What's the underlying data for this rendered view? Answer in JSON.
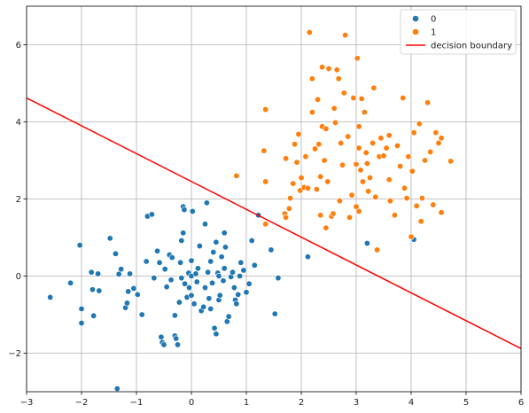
{
  "chart_data": {
    "type": "scatter",
    "xlim": [
      -3,
      6
    ],
    "ylim": [
      -3,
      7
    ],
    "x_ticks": [
      "−3",
      "−2",
      "−1",
      "0",
      "1",
      "2",
      "3",
      "4",
      "5",
      "6"
    ],
    "y_ticks": [
      "−2",
      "0",
      "2",
      "4",
      "6"
    ],
    "x_tick_values": [
      -3,
      -2,
      -1,
      0,
      1,
      2,
      3,
      4,
      5,
      6
    ],
    "y_tick_values": [
      -2,
      0,
      2,
      4,
      6
    ],
    "grid": true,
    "legend": {
      "placement": "top-right",
      "entries": [
        "0",
        "1",
        "decision boundary"
      ]
    },
    "series": [
      {
        "name": "0",
        "color": "#1f77b4",
        "points": [
          [
            -2.57,
            -0.55
          ],
          [
            -2.2,
            -0.18
          ],
          [
            -2.03,
            0.8
          ],
          [
            -2.0,
            -0.85
          ],
          [
            -2.0,
            -1.22
          ],
          [
            -1.82,
            0.1
          ],
          [
            -1.8,
            -0.35
          ],
          [
            -1.78,
            -1.03
          ],
          [
            -1.7,
            0.06
          ],
          [
            -1.68,
            -0.38
          ],
          [
            -1.48,
            0.98
          ],
          [
            -1.38,
            0.58
          ],
          [
            -1.35,
            -2.92
          ],
          [
            -1.32,
            0.05
          ],
          [
            -1.28,
            0.18
          ],
          [
            -1.2,
            -0.82
          ],
          [
            -1.17,
            -0.7
          ],
          [
            -1.15,
            -0.4
          ],
          [
            -1.12,
            0.06
          ],
          [
            -1.05,
            -0.32
          ],
          [
            -0.98,
            -0.48
          ],
          [
            -0.9,
            -1.0
          ],
          [
            -0.82,
            0.38
          ],
          [
            -0.8,
            1.55
          ],
          [
            -0.72,
            1.6
          ],
          [
            -0.68,
            -0.05
          ],
          [
            -0.62,
            0.65
          ],
          [
            -0.58,
            0.35
          ],
          [
            -0.55,
            -1.58
          ],
          [
            -0.53,
            -1.72
          ],
          [
            -0.5,
            -1.78
          ],
          [
            -0.48,
            0.18
          ],
          [
            -0.45,
            -0.28
          ],
          [
            -0.4,
            0.55
          ],
          [
            -0.37,
            -0.1
          ],
          [
            -0.35,
            0.48
          ],
          [
            -0.3,
            -1.02
          ],
          [
            -0.3,
            -1.55
          ],
          [
            -0.28,
            -1.62
          ],
          [
            -0.25,
            -1.78
          ],
          [
            -0.22,
            -0.68
          ],
          [
            -0.2,
            0.35
          ],
          [
            -0.18,
            0.92
          ],
          [
            -0.18,
            -0.05
          ],
          [
            -0.15,
            1.8
          ],
          [
            -0.13,
            1.72
          ],
          [
            -0.12,
            -0.2
          ],
          [
            -0.08,
            -0.55
          ],
          [
            -0.05,
            0.08
          ],
          [
            -0.04,
            -0.3
          ],
          [
            0.0,
            -0.5
          ],
          [
            0.0,
            0.0
          ],
          [
            0.0,
            0.4
          ],
          [
            0.02,
            1.68
          ],
          [
            0.05,
            -0.72
          ],
          [
            0.08,
            0.06
          ],
          [
            0.1,
            -0.15
          ],
          [
            0.12,
            0.2
          ],
          [
            0.15,
            0.78
          ],
          [
            0.18,
            -0.9
          ],
          [
            0.22,
            -0.8
          ],
          [
            0.25,
            -0.3
          ],
          [
            0.28,
            1.9
          ],
          [
            0.3,
            0.1
          ],
          [
            0.32,
            -0.58
          ],
          [
            0.35,
            0.38
          ],
          [
            0.38,
            -0.18
          ],
          [
            0.4,
            0.62
          ],
          [
            0.42,
            -1.35
          ],
          [
            0.45,
            -1.5
          ],
          [
            0.48,
            0.08
          ],
          [
            0.5,
            0.0
          ],
          [
            0.5,
            -0.62
          ],
          [
            0.52,
            -0.5
          ],
          [
            0.55,
            0.5
          ],
          [
            0.58,
            -0.12
          ],
          [
            0.6,
            0.2
          ],
          [
            0.62,
            0.75
          ],
          [
            0.65,
            -1.18
          ],
          [
            0.68,
            -1.05
          ],
          [
            0.72,
            -0.02
          ],
          [
            0.75,
            0.1
          ],
          [
            0.78,
            -0.3
          ],
          [
            0.8,
            -0.62
          ],
          [
            0.82,
            -0.72
          ],
          [
            0.85,
            -0.48
          ],
          [
            0.88,
            0.0
          ],
          [
            0.9,
            0.35
          ],
          [
            0.95,
            0.15
          ],
          [
            1.0,
            -0.42
          ],
          [
            1.05,
            -0.2
          ],
          [
            1.1,
            0.92
          ],
          [
            1.15,
            0.28
          ],
          [
            1.22,
            1.58
          ],
          [
            1.45,
            0.68
          ],
          [
            1.52,
            -0.98
          ],
          [
            1.58,
            -0.05
          ],
          [
            2.12,
            0.5
          ],
          [
            3.2,
            0.85
          ],
          [
            4.05,
            0.95
          ],
          [
            0.45,
            0.88
          ],
          [
            -0.15,
            1.12
          ],
          [
            0.25,
            1.35
          ],
          [
            0.35,
            -0.85
          ],
          [
            0.6,
            1.12
          ]
        ]
      },
      {
        "name": "1",
        "color": "#ff7f0e",
        "points": [
          [
            0.82,
            2.6
          ],
          [
            1.35,
            4.32
          ],
          [
            1.35,
            1.35
          ],
          [
            1.32,
            3.25
          ],
          [
            1.35,
            2.45
          ],
          [
            1.7,
            1.62
          ],
          [
            1.72,
            1.52
          ],
          [
            1.72,
            3.05
          ],
          [
            1.78,
            1.75
          ],
          [
            1.8,
            2.02
          ],
          [
            1.85,
            2.4
          ],
          [
            1.88,
            3.42
          ],
          [
            1.92,
            2.95
          ],
          [
            1.95,
            3.68
          ],
          [
            1.98,
            2.22
          ],
          [
            2.0,
            2.55
          ],
          [
            2.05,
            2.3
          ],
          [
            2.08,
            3.1
          ],
          [
            2.12,
            2.28
          ],
          [
            2.15,
            6.32
          ],
          [
            2.2,
            5.12
          ],
          [
            2.25,
            3.3
          ],
          [
            2.28,
            2.25
          ],
          [
            2.3,
            4.58
          ],
          [
            2.32,
            3.42
          ],
          [
            2.35,
            1.58
          ],
          [
            2.35,
            2.58
          ],
          [
            2.38,
            5.42
          ],
          [
            2.38,
            3.88
          ],
          [
            2.42,
            3.0
          ],
          [
            2.45,
            1.25
          ],
          [
            2.45,
            3.82
          ],
          [
            2.48,
            2.45
          ],
          [
            2.5,
            5.38
          ],
          [
            2.55,
            1.55
          ],
          [
            2.58,
            1.62
          ],
          [
            2.6,
            4.35
          ],
          [
            2.62,
            3.98
          ],
          [
            2.65,
            5.35
          ],
          [
            2.68,
            5.12
          ],
          [
            2.72,
            3.45
          ],
          [
            2.75,
            2.88
          ],
          [
            2.78,
            4.75
          ],
          [
            2.8,
            6.25
          ],
          [
            2.85,
            3.62
          ],
          [
            2.88,
            1.52
          ],
          [
            2.92,
            2.1
          ],
          [
            2.95,
            4.62
          ],
          [
            3.0,
            1.8
          ],
          [
            3.0,
            2.9
          ],
          [
            3.02,
            5.65
          ],
          [
            3.05,
            3.32
          ],
          [
            3.05,
            3.88
          ],
          [
            3.08,
            2.75
          ],
          [
            3.1,
            4.6
          ],
          [
            3.12,
            2.45
          ],
          [
            3.15,
            4.25
          ],
          [
            3.18,
            3.2
          ],
          [
            3.2,
            2.92
          ],
          [
            3.22,
            2.2
          ],
          [
            3.25,
            2.55
          ],
          [
            3.3,
            3.45
          ],
          [
            3.32,
            4.88
          ],
          [
            3.35,
            2.05
          ],
          [
            3.38,
            0.68
          ],
          [
            3.42,
            3.1
          ],
          [
            3.45,
            3.58
          ],
          [
            3.5,
            3.12
          ],
          [
            3.55,
            3.32
          ],
          [
            3.6,
            3.65
          ],
          [
            3.62,
            1.95
          ],
          [
            3.7,
            1.58
          ],
          [
            3.75,
            3.38
          ],
          [
            3.8,
            2.85
          ],
          [
            3.85,
            4.62
          ],
          [
            3.88,
            2.28
          ],
          [
            3.92,
            2.02
          ],
          [
            3.95,
            3.1
          ],
          [
            4.0,
            1.02
          ],
          [
            4.02,
            2.72
          ],
          [
            4.05,
            3.72
          ],
          [
            4.1,
            1.82
          ],
          [
            4.15,
            3.95
          ],
          [
            4.18,
            1.42
          ],
          [
            4.2,
            2.02
          ],
          [
            4.25,
            3.0
          ],
          [
            4.3,
            4.5
          ],
          [
            4.35,
            3.22
          ],
          [
            4.4,
            1.85
          ],
          [
            4.45,
            3.72
          ],
          [
            4.5,
            3.45
          ],
          [
            4.55,
            3.58
          ],
          [
            4.55,
            1.65
          ],
          [
            4.72,
            2.98
          ],
          [
            2.7,
            1.95
          ],
          [
            3.05,
            1.68
          ],
          [
            2.2,
            4.25
          ],
          [
            3.6,
            2.5
          ]
        ]
      },
      {
        "name": "decision boundary",
        "type": "line",
        "color": "#ff0000",
        "points": [
          [
            -3,
            4.62
          ],
          [
            6,
            -1.88
          ]
        ]
      }
    ]
  }
}
